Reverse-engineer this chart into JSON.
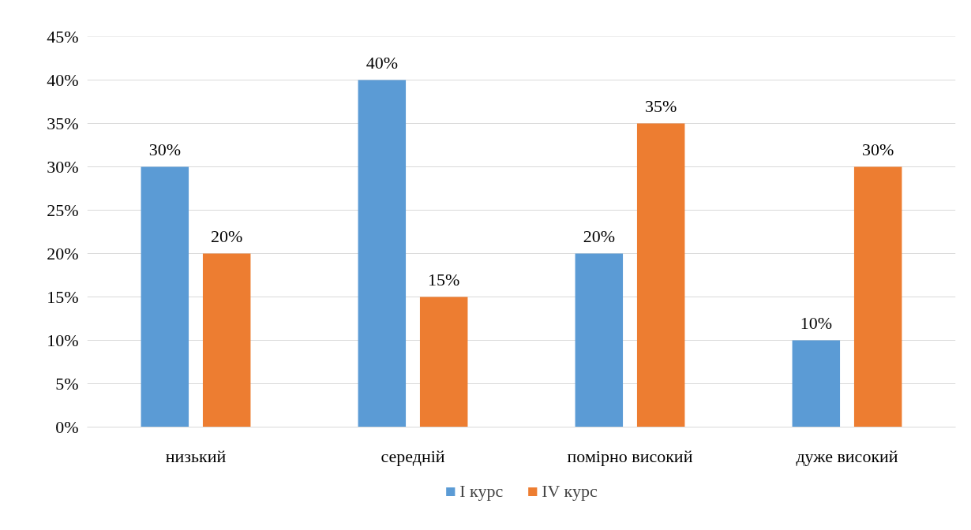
{
  "chart_data": {
    "type": "bar",
    "categories": [
      "низький",
      "середній",
      "помірно високий",
      "дуже високий"
    ],
    "series": [
      {
        "name": "I курс",
        "color": "#5b9bd5",
        "values": [
          30,
          40,
          20,
          10
        ],
        "value_labels": [
          "30%",
          "40%",
          "20%",
          "10%"
        ]
      },
      {
        "name": "IV курс",
        "color": "#ed7d31",
        "values": [
          20,
          15,
          35,
          30
        ],
        "value_labels": [
          "20%",
          "15%",
          "35%",
          "30%"
        ]
      }
    ],
    "ylim": [
      0,
      45
    ],
    "yticks": [
      {
        "value": 0,
        "label": "0%"
      },
      {
        "value": 5,
        "label": "5%"
      },
      {
        "value": 10,
        "label": "10%"
      },
      {
        "value": 15,
        "label": "15%"
      },
      {
        "value": 20,
        "label": "20%"
      },
      {
        "value": 25,
        "label": "25%"
      },
      {
        "value": 30,
        "label": "30%"
      },
      {
        "value": 35,
        "label": "35%"
      },
      {
        "value": 40,
        "label": "40%"
      },
      {
        "value": 45,
        "label": "45%"
      }
    ],
    "grid": "y",
    "legend": "bottom"
  }
}
